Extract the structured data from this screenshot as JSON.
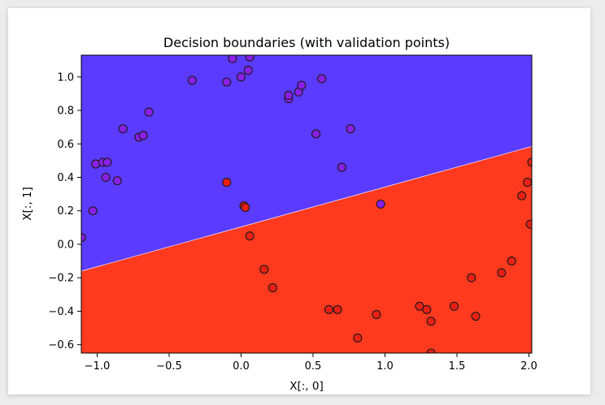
{
  "chart_data": {
    "type": "scatter",
    "title": "Decision boundaries (with validation points)",
    "xlabel": "X[:, 0]",
    "ylabel": "X[:, 1]",
    "xlim": [
      -1.11,
      2.02
    ],
    "ylim": [
      -0.65,
      1.13
    ],
    "xticks": [
      -1.0,
      -0.5,
      0.0,
      0.5,
      1.0,
      1.5,
      2.0
    ],
    "xtick_labels": [
      "−1.0",
      "−0.5",
      "0.0",
      "0.5",
      "1.0",
      "1.5",
      "2.0"
    ],
    "yticks": [
      -0.6,
      -0.4,
      -0.2,
      0.0,
      0.2,
      0.4,
      0.6,
      0.8,
      1.0
    ],
    "ytick_labels": [
      "−0.6",
      "−0.4",
      "−0.2",
      "0.0",
      "0.2",
      "0.4",
      "0.6",
      "0.8",
      "1.0"
    ],
    "grid": false,
    "decision_boundary": {
      "line": [
        [
          -1.11,
          -0.16
        ],
        [
          2.02,
          0.585
        ]
      ],
      "region_above": {
        "class": 0,
        "color": "#5b3bff"
      },
      "region_below": {
        "class": 1,
        "color": "#ff3a1f"
      }
    },
    "series": [
      {
        "class": 0,
        "color": "#8a1fe6",
        "points": [
          [
            -1.03,
            0.2
          ],
          [
            -1.01,
            0.48
          ],
          [
            -0.96,
            0.49
          ],
          [
            -0.94,
            0.4
          ],
          [
            -0.93,
            0.49
          ],
          [
            -0.86,
            0.38
          ],
          [
            -0.82,
            0.69
          ],
          [
            -0.71,
            0.64
          ],
          [
            -0.68,
            0.65
          ],
          [
            -0.64,
            0.79
          ],
          [
            -0.34,
            0.98
          ],
          [
            -0.1,
            0.97
          ],
          [
            -0.06,
            1.11
          ],
          [
            0.0,
            1.0
          ],
          [
            0.05,
            1.04
          ],
          [
            0.06,
            1.12
          ],
          [
            0.33,
            0.87
          ],
          [
            0.33,
            0.89
          ],
          [
            0.4,
            0.91
          ],
          [
            0.42,
            0.95
          ],
          [
            0.52,
            0.66
          ],
          [
            0.56,
            0.99
          ],
          [
            0.7,
            0.46
          ],
          [
            0.76,
            0.69
          ],
          [
            -1.11,
            0.04
          ]
        ]
      },
      {
        "class": 1,
        "color": "#e81f14",
        "points": [
          [
            -0.1,
            0.37
          ],
          [
            0.02,
            0.23
          ],
          [
            0.03,
            0.22
          ],
          [
            0.06,
            0.05
          ],
          [
            0.16,
            -0.15
          ],
          [
            0.22,
            -0.26
          ],
          [
            0.61,
            -0.39
          ],
          [
            0.67,
            -0.39
          ],
          [
            0.81,
            -0.56
          ],
          [
            0.94,
            -0.42
          ],
          [
            1.24,
            -0.37
          ],
          [
            1.29,
            -0.39
          ],
          [
            1.32,
            -0.46
          ],
          [
            1.32,
            -0.65
          ],
          [
            1.48,
            -0.37
          ],
          [
            1.6,
            -0.2
          ],
          [
            1.63,
            -0.43
          ],
          [
            1.81,
            -0.17
          ],
          [
            1.88,
            -0.1
          ],
          [
            1.95,
            0.29
          ],
          [
            1.99,
            0.37
          ],
          [
            2.01,
            0.12
          ],
          [
            2.02,
            0.49
          ]
        ]
      },
      {
        "class": 0,
        "color": "#8a1fe6",
        "misclassified": true,
        "points": [
          [
            0.97,
            0.24
          ]
        ]
      }
    ]
  }
}
